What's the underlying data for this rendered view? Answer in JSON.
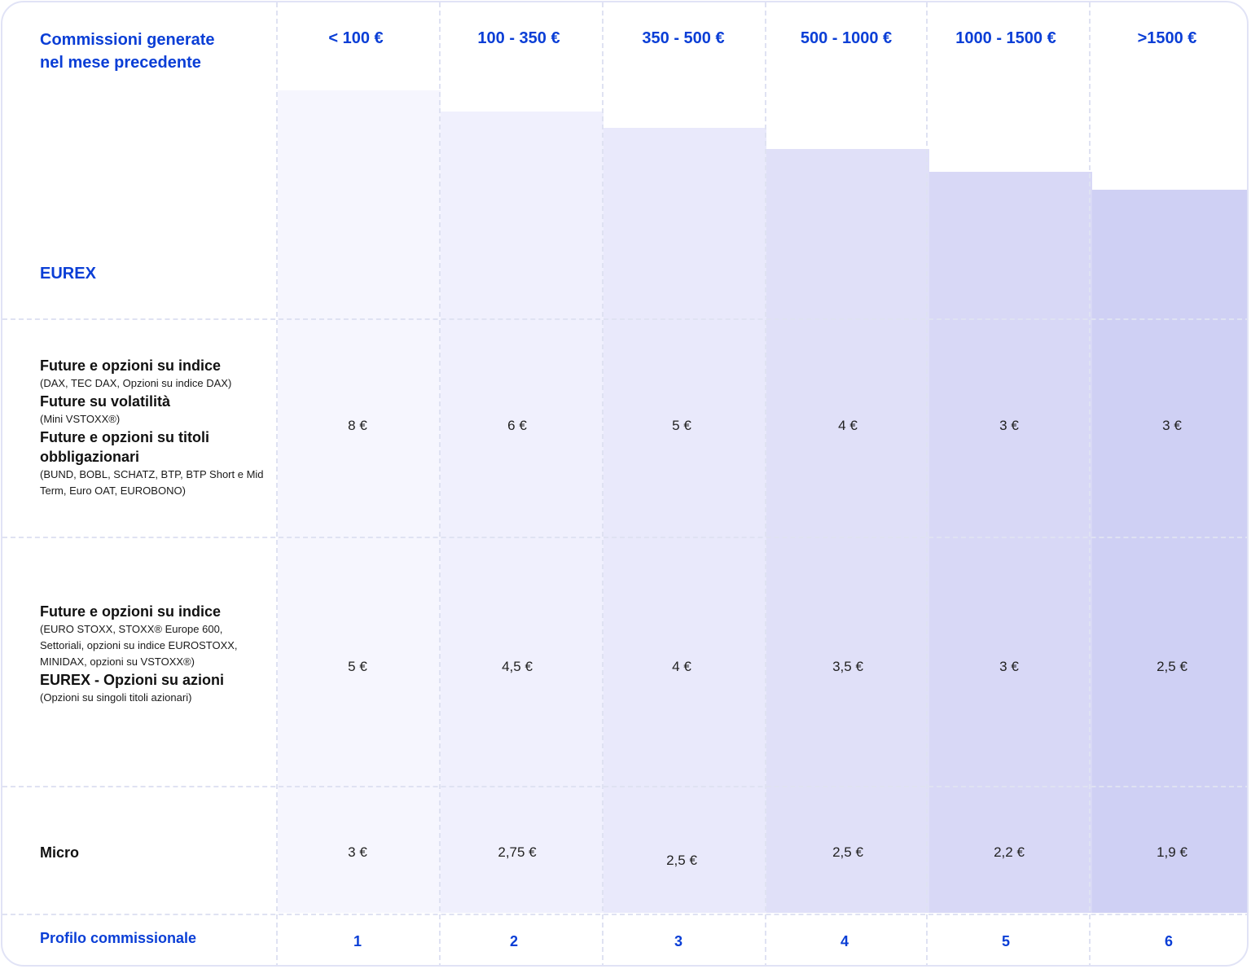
{
  "header": {
    "left_line1": "Commissioni generate",
    "left_line2": "nel mese precedente",
    "columns": [
      "< 100 €",
      "100 - 350 €",
      "350 - 500 €",
      "500 - 1000 €",
      "1000 - 1500 €",
      ">1500 €"
    ]
  },
  "section": {
    "label": "EUREX"
  },
  "rows": [
    {
      "groups": [
        {
          "title": "Future e opzioni su indice",
          "sub": "(DAX, TEC DAX, Opzioni su indice DAX)"
        },
        {
          "title": "Future su volatilità",
          "sub": "(Mini VSTOXX®)"
        },
        {
          "title": "Future e opzioni su titoli obbligazionari",
          "sub": "(BUND, BOBL, SCHATZ, BTP, BTP Short e Mid Term, Euro OAT, EUROBONO)"
        }
      ],
      "values": [
        "8 €",
        "6 €",
        "5 €",
        "4 €",
        "3 €",
        "3 €"
      ]
    },
    {
      "groups": [
        {
          "title": "Future e opzioni su indice",
          "sub": "(EURO STOXX, STOXX® Europe 600, Settoriali, opzioni su indice EUROSTOXX, MINIDAX, opzioni su VSTOXX®)"
        },
        {
          "title": "EUREX - Opzioni su azioni",
          "sub": "(Opzioni su singoli titoli azionari)"
        }
      ],
      "values": [
        "5 €",
        "4,5 €",
        "4 €",
        "3,5 €",
        "3 €",
        "2,5 €"
      ]
    },
    {
      "groups": [
        {
          "title": "Micro",
          "sub": ""
        }
      ],
      "values": [
        "3 €",
        "2,75 €",
        "2,5 €",
        "2,5 €",
        "2,2 €",
        "1,9 €"
      ]
    }
  ],
  "footer": {
    "label": "Profilo commissionale",
    "profiles": [
      "1",
      "2",
      "3",
      "4",
      "5",
      "6"
    ]
  },
  "colors": {
    "accent": "#0a3ed6",
    "bars": [
      "#f6f6fe",
      "#f0f0fd",
      "#e9e9fb",
      "#e0e0f8",
      "#d8d8f6",
      "#cfd0f4"
    ]
  }
}
